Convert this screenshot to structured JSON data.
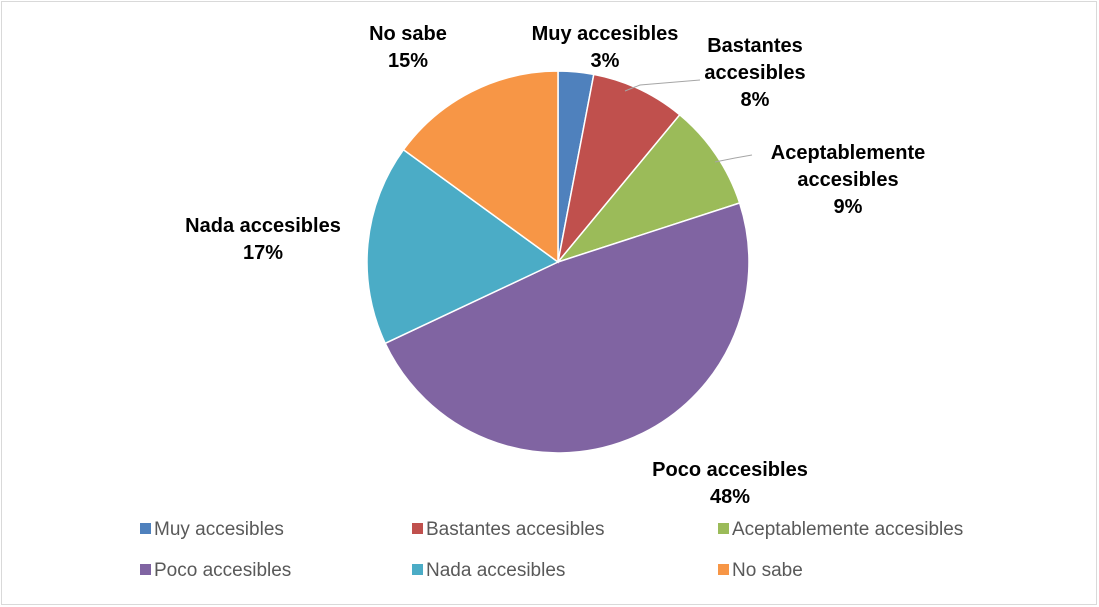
{
  "chart_data": {
    "type": "pie",
    "title": "",
    "categories": [
      "Muy accesibles",
      "Bastantes accesibles",
      "Aceptablemente accesibles",
      "Poco accesibles",
      "Nada accesibles",
      "No sabe"
    ],
    "values": [
      3,
      8,
      9,
      48,
      17,
      15
    ],
    "unit": "%",
    "colors": [
      "#4f81bd",
      "#c0504d",
      "#9bbb59",
      "#8064a2",
      "#4bacc6",
      "#f79646"
    ],
    "data_labels": [
      {
        "lines": [
          "Muy accesibles",
          "3%"
        ]
      },
      {
        "lines": [
          "Bastantes",
          "accesibles",
          "8%"
        ]
      },
      {
        "lines": [
          "Aceptablemente",
          "accesibles",
          "9%"
        ]
      },
      {
        "lines": [
          "Poco accesibles",
          "48%"
        ]
      },
      {
        "lines": [
          "Nada accesibles",
          "17%"
        ]
      },
      {
        "lines": [
          "No sabe",
          "15%"
        ]
      }
    ],
    "legend": {
      "position": "bottom",
      "entries": [
        "Muy accesibles",
        "Bastantes accesibles",
        "Aceptablemente accesibles",
        "Poco accesibles",
        "Nada accesibles",
        "No sabe"
      ]
    }
  }
}
